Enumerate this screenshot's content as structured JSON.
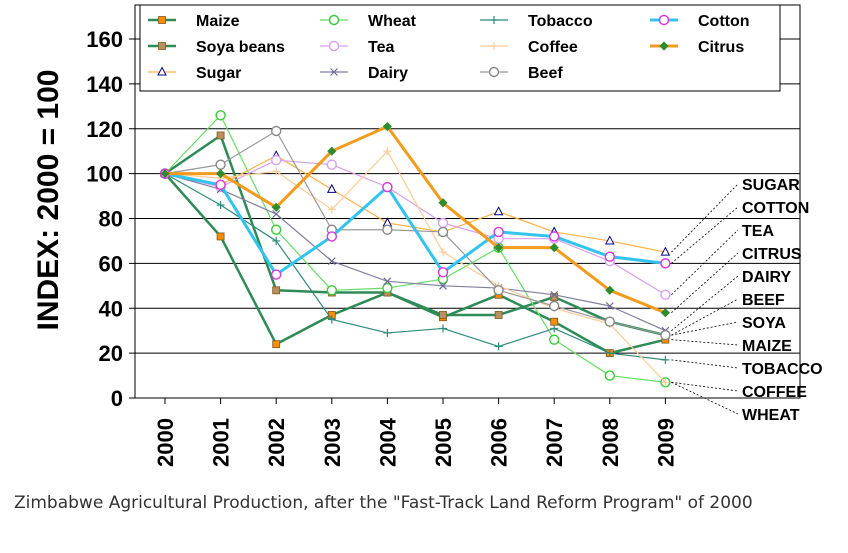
{
  "chart_data": {
    "type": "line",
    "title": "",
    "xlabel": "",
    "ylabel": "INDEX: 2000 = 100",
    "ylim": [
      0,
      160
    ],
    "yticks": [
      0,
      20,
      40,
      60,
      80,
      100,
      120,
      140,
      160
    ],
    "categories": [
      "2000",
      "2001",
      "2002",
      "2003",
      "2004",
      "2005",
      "2006",
      "2007",
      "2008",
      "2009"
    ],
    "grid": "horizontal",
    "legend_position": "top",
    "series": [
      {
        "name": "Maize",
        "label": "MAIZE",
        "color": "#2e8b57",
        "marker": "square",
        "marker_color": "#ff8c00",
        "values": [
          100,
          72,
          24,
          37,
          47,
          36,
          46,
          34,
          20,
          26
        ]
      },
      {
        "name": "Soya beans",
        "label": "SOYA",
        "color": "#2e8b57",
        "marker": "square",
        "marker_color": "#bc8f5f",
        "values": [
          100,
          117,
          48,
          47,
          47,
          37,
          37,
          45,
          34,
          28
        ]
      },
      {
        "name": "Sugar",
        "label": "SUGAR",
        "color": "#ffb347",
        "marker": "triangle",
        "marker_color": "#00008b",
        "values": [
          100,
          95,
          108,
          93,
          78,
          74,
          83,
          74,
          70,
          65
        ]
      },
      {
        "name": "Wheat",
        "label": "WHEAT",
        "color": "#66dd66",
        "marker": "circle",
        "marker_color": "#33cc33",
        "values": [
          100,
          126,
          75,
          48,
          49,
          53,
          67,
          26,
          10,
          7
        ]
      },
      {
        "name": "Tea",
        "label": "TEA",
        "color": "#d8a0ee",
        "marker": "circle",
        "marker_color": "#d8a0ee",
        "values": [
          100,
          94,
          106,
          104,
          94,
          78,
          71,
          71,
          61,
          46
        ]
      },
      {
        "name": "Dairy",
        "label": "DAIRY",
        "color": "#8080a0",
        "marker": "x",
        "marker_color": "#6a6a90",
        "values": [
          100,
          93,
          82,
          61,
          52,
          50,
          49,
          46,
          41,
          30
        ]
      },
      {
        "name": "Tobacco",
        "label": "TOBACCO",
        "color": "#2e8b7a",
        "marker": "plus",
        "marker_color": "#2e8b7a",
        "values": [
          100,
          86,
          70,
          35,
          29,
          31,
          23,
          31,
          20,
          17
        ]
      },
      {
        "name": "Coffee",
        "label": "COFFEE",
        "color": "#ffcc99",
        "marker": "plus",
        "marker_color": "#ffcc99",
        "values": [
          100,
          98,
          101,
          84,
          110,
          65,
          50,
          40,
          33,
          7
        ]
      },
      {
        "name": "Beef",
        "label": "BEEF",
        "color": "#999999",
        "marker": "circle",
        "marker_color": "#888888",
        "values": [
          100,
          104,
          119,
          75,
          75,
          74,
          48,
          41,
          34,
          28
        ]
      },
      {
        "name": "Cotton",
        "label": "COTTON",
        "color": "#33c4ee",
        "marker": "circle",
        "marker_color": "#dd33dd",
        "values": [
          100,
          95,
          55,
          72,
          94,
          56,
          74,
          72,
          63,
          60
        ]
      },
      {
        "name": "Citrus",
        "label": "CITRUS",
        "color": "#f29b1c",
        "marker": "diamond",
        "marker_color": "#2e8b2e",
        "values": [
          100,
          100,
          85,
          110,
          121,
          87,
          67,
          67,
          48,
          38
        ]
      }
    ],
    "end_label_order": [
      "SUGAR",
      "COTTON",
      "TEA",
      "CITRUS",
      "DAIRY",
      "BEEF",
      "SOYA",
      "MAIZE",
      "TOBACCO",
      "COFFEE",
      "WHEAT"
    ]
  },
  "caption": "Zimbabwe Agricultural Production, after the \"Fast-Track Land Reform Program\" of 2000"
}
